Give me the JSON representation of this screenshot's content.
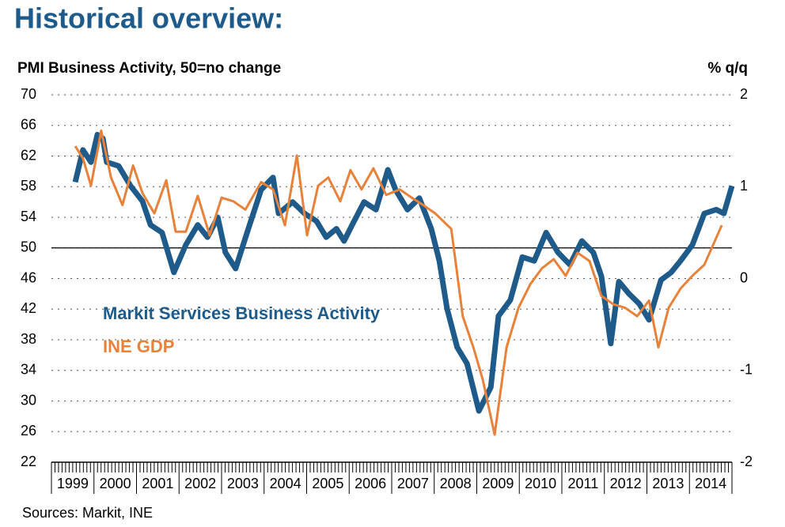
{
  "chart_data": {
    "type": "line",
    "title": "Historical overview:",
    "y_label": "PMI Business Activity, 50=no change",
    "y2_label": "% q/q",
    "source": "Sources: Markit, INE",
    "categories": [
      "1999",
      "2000",
      "2001",
      "2002",
      "2003",
      "2004",
      "2005",
      "2006",
      "2007",
      "2008",
      "2009",
      "2010",
      "2011",
      "2012",
      "2013",
      "2014"
    ],
    "xlim": [
      1999,
      2015
    ],
    "ylim": [
      22,
      70
    ],
    "yticks": [
      22,
      26,
      30,
      34,
      38,
      42,
      46,
      50,
      54,
      58,
      62,
      66,
      70
    ],
    "y2lim": [
      -2,
      2
    ],
    "y2ticks": [
      -2,
      -1,
      0,
      1,
      2
    ],
    "hline": 50,
    "grid": true,
    "series": [
      {
        "name": "Markit Services Business Activity",
        "color": "#1f5b8a",
        "x": [
          1999.56,
          1999.74,
          1999.93,
          2000.08,
          2000.21,
          2000.3,
          2000.58,
          2000.86,
          2001.14,
          2001.33,
          2001.6,
          2001.88,
          2002.16,
          2002.44,
          2002.67,
          2002.91,
          2003.09,
          2003.33,
          2003.6,
          2003.93,
          2004.21,
          2004.34,
          2004.67,
          2004.95,
          2005.23,
          2005.46,
          2005.7,
          2005.88,
          2006.07,
          2006.35,
          2006.63,
          2006.91,
          2007.09,
          2007.37,
          2007.65,
          2007.93,
          2008.12,
          2008.3,
          2008.54,
          2008.77,
          2009.05,
          2009.33,
          2009.51,
          2009.79,
          2010.07,
          2010.35,
          2010.63,
          2010.91,
          2011.19,
          2011.47,
          2011.74,
          2011.93,
          2012.15,
          2012.34,
          2012.58,
          2012.82,
          2013.05,
          2013.33,
          2013.57,
          2013.79,
          2014.07,
          2014.35,
          2014.63,
          2014.81,
          2015.0
        ],
        "values": [
          58.6,
          62.8,
          61.2,
          64.8,
          64.3,
          61.2,
          60.7,
          58.1,
          56.1,
          53,
          52,
          46.8,
          50.4,
          53,
          51.4,
          54,
          49.4,
          47.3,
          52,
          57.6,
          59.2,
          54.5,
          56,
          54.5,
          53.5,
          51.4,
          52.5,
          50.9,
          53,
          56,
          55,
          60.2,
          57.6,
          55,
          56.5,
          52.5,
          48.3,
          42.1,
          37,
          34.9,
          28.7,
          31.8,
          41.1,
          43.2,
          48.8,
          48.3,
          52,
          49.4,
          47.8,
          50.9,
          49.4,
          46.3,
          37.5,
          45.6,
          44,
          42.7,
          40.6,
          45.8,
          46.8,
          48.3,
          50.4,
          54.5,
          55,
          54.5,
          58.1
        ]
      },
      {
        "name": "INE GDP",
        "color": "#e8823a",
        "axis": "y2",
        "x": [
          1999.56,
          1999.74,
          1999.93,
          2000.17,
          2000.4,
          2000.67,
          2000.92,
          2001.14,
          2001.42,
          2001.7,
          2001.92,
          2002.16,
          2002.44,
          2002.72,
          2003.0,
          2003.28,
          2003.56,
          2003.93,
          2004.21,
          2004.49,
          2004.77,
          2005.01,
          2005.27,
          2005.51,
          2005.79,
          2006.03,
          2006.29,
          2006.57,
          2006.87,
          2007.19,
          2007.47,
          2007.74,
          2008.02,
          2008.4,
          2008.67,
          2008.92,
          2009.14,
          2009.42,
          2009.7,
          2009.98,
          2010.26,
          2010.53,
          2010.81,
          2011.09,
          2011.37,
          2011.65,
          2011.93,
          2012.21,
          2012.49,
          2012.77,
          2013.05,
          2013.27,
          2013.51,
          2013.79,
          2014.07,
          2014.35,
          2014.76
        ],
        "values": [
          1.44,
          1.31,
          1.01,
          1.61,
          1.1,
          0.8,
          1.23,
          0.93,
          0.71,
          1.07,
          0.51,
          0.51,
          0.9,
          0.47,
          0.88,
          0.84,
          0.75,
          1.05,
          0.97,
          0.58,
          1.34,
          0.47,
          1.01,
          1.1,
          0.84,
          1.18,
          0.97,
          1.2,
          0.91,
          0.97,
          0.88,
          0.8,
          0.71,
          0.54,
          -0.41,
          -0.75,
          -1.1,
          -1.7,
          -0.75,
          -0.32,
          -0.06,
          0.11,
          0.21,
          0.03,
          0.28,
          0.19,
          -0.19,
          -0.28,
          -0.32,
          -0.41,
          -0.24,
          -0.75,
          -0.32,
          -0.11,
          0.03,
          0.15,
          0.58
        ]
      }
    ]
  }
}
